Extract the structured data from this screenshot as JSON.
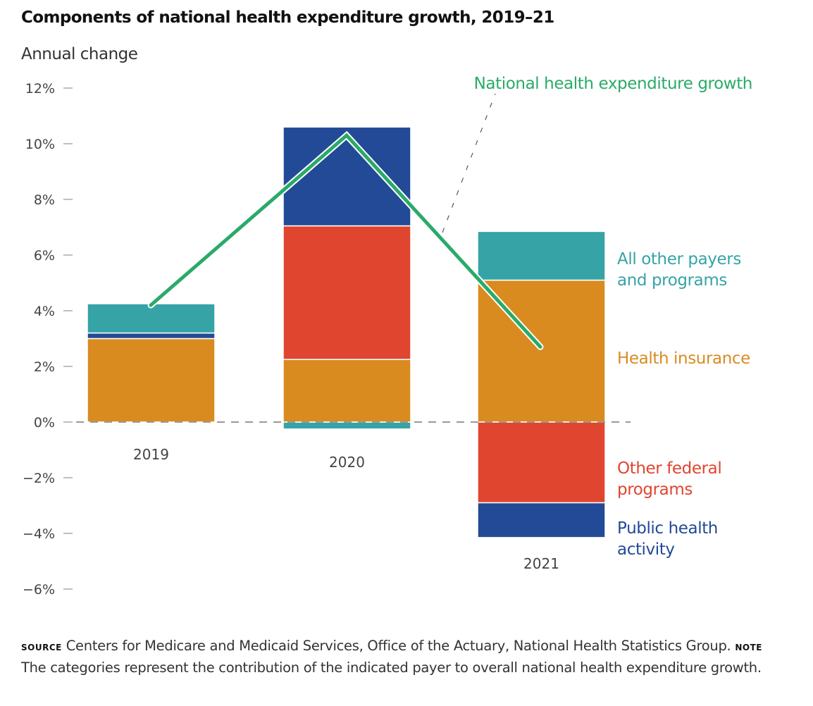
{
  "chart_data": {
    "type": "bar",
    "stacked": true,
    "title": "Components of national health expenditure growth, 2019–21",
    "ylabel": "Annual change",
    "xlabel": "",
    "ylim": [
      -6,
      12
    ],
    "yticks": [
      12,
      10,
      8,
      6,
      4,
      2,
      0,
      -2,
      -4,
      -6
    ],
    "ytick_labels": [
      "12%",
      "10%",
      "8%",
      "6%",
      "4%",
      "2%",
      "0%",
      "−2%",
      "−4%",
      "−6%"
    ],
    "categories": [
      "2019",
      "2020",
      "2021"
    ],
    "series": [
      {
        "name": "Health insurance",
        "color": "#d98b20",
        "values": [
          3.0,
          2.25,
          5.1
        ]
      },
      {
        "name": "Public health activity",
        "color": "#234a96",
        "values": [
          0.2,
          3.55,
          -1.25
        ]
      },
      {
        "name": "Other federal programs",
        "color": "#e04530",
        "values": [
          0.0,
          4.8,
          -2.9
        ]
      },
      {
        "name": "All other payers and programs",
        "color": "#36a3a6",
        "values": [
          1.05,
          -0.25,
          1.75
        ]
      }
    ],
    "stack_order": {
      "2019": [
        "Health insurance",
        "Public health activity",
        "All other payers and programs"
      ],
      "2020": [
        "All other payers and programs",
        "Health insurance",
        "Other federal programs",
        "Public health activity"
      ],
      "2021": [
        "Health insurance",
        "All other payers and programs",
        "Other federal programs",
        "Public health activity"
      ]
    },
    "line_series": {
      "name": "National health expenditure growth",
      "color": "#2aaa68",
      "values": [
        4.2,
        10.3,
        2.7
      ]
    },
    "zero_line": "dashed",
    "grid": false,
    "legend": "right, direct labels",
    "legend_labels": [
      {
        "text": [
          "All other payers",
          "and programs"
        ],
        "color": "#36a3a6"
      },
      {
        "text": [
          "Health insurance"
        ],
        "color": "#d98b20"
      },
      {
        "text": [
          "Other federal",
          "programs"
        ],
        "color": "#e04530"
      },
      {
        "text": [
          "Public health",
          "activity"
        ],
        "color": "#234a96"
      }
    ],
    "annotation": "National health expenditure growth"
  },
  "footer": {
    "source_label": "SOURCE",
    "source_text": " Centers for Medicare and Medicaid Services, Office of the Actuary, National Health Statistics Group. ",
    "note_label": "NOTE",
    "note_text": " The categories represent the contribution of the indicated payer to overall national health expenditure growth."
  }
}
